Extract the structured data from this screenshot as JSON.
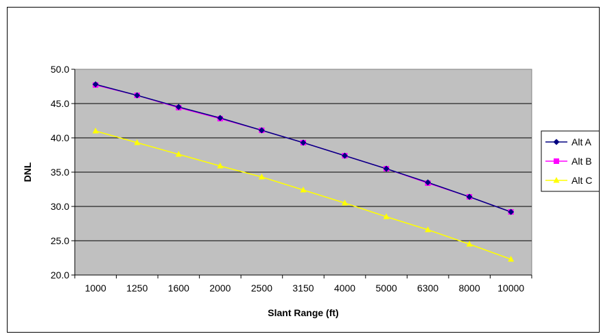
{
  "chart_data": {
    "type": "line",
    "title": "",
    "xlabel": "Slant Range (ft)",
    "ylabel": "DNL",
    "categories": [
      "1000",
      "1250",
      "1600",
      "2000",
      "2500",
      "3150",
      "4000",
      "5000",
      "6300",
      "8000",
      "10000"
    ],
    "ylim": [
      20,
      50
    ],
    "yticks": [
      "20.0",
      "25.0",
      "30.0",
      "35.0",
      "40.0",
      "45.0",
      "50.0"
    ],
    "grid": "horizontal",
    "plot_background": "#c0c0c0",
    "legend_position": "right",
    "series": [
      {
        "name": "Alt A",
        "color": "#000080",
        "marker": "diamond",
        "values": [
          47.8,
          46.2,
          44.5,
          42.9,
          41.1,
          39.3,
          37.4,
          35.5,
          33.5,
          31.4,
          29.2
        ]
      },
      {
        "name": "Alt B",
        "color": "#ff00ff",
        "marker": "square",
        "values": [
          47.7,
          46.2,
          44.4,
          42.8,
          41.1,
          39.3,
          37.4,
          35.5,
          33.4,
          31.4,
          29.2
        ]
      },
      {
        "name": "Alt C",
        "color": "#ffff00",
        "marker": "triangle",
        "values": [
          41.0,
          39.3,
          37.6,
          35.9,
          34.3,
          32.4,
          30.5,
          28.5,
          26.6,
          24.5,
          22.3
        ]
      }
    ]
  }
}
